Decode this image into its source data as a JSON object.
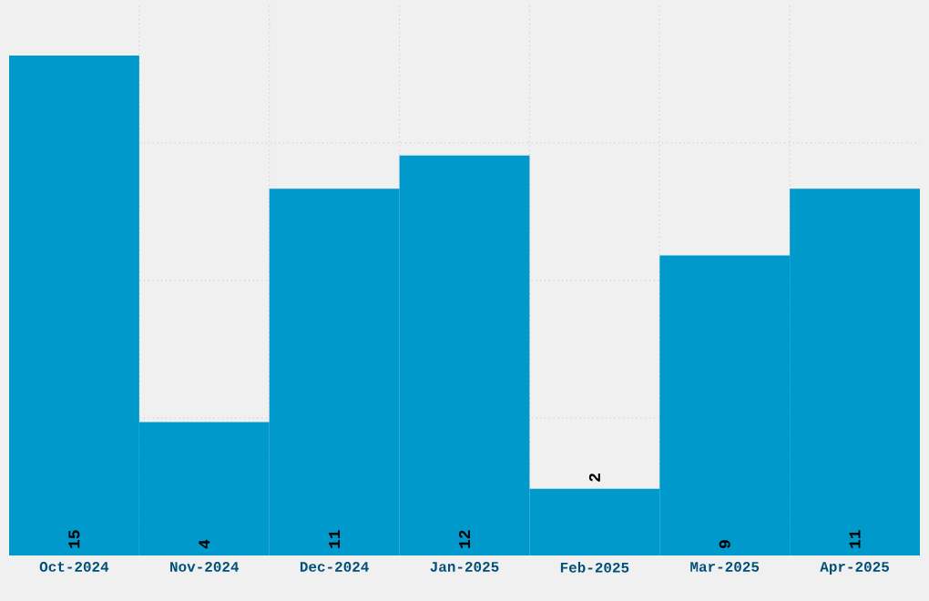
{
  "chart_data": {
    "type": "bar",
    "categories": [
      "Oct-2024",
      "Nov-2024",
      "Dec-2024",
      "Jan-2025",
      "Feb-2025",
      "Mar-2025",
      "Apr-2025"
    ],
    "values": [
      15,
      4,
      11,
      12,
      2,
      9,
      11
    ],
    "color": "#0099cc",
    "ylim": [
      0,
      16.5
    ],
    "yticks": [
      {
        "value": 4.125,
        "label": null
      },
      {
        "value": 8.25,
        "label": null
      },
      {
        "value": 12.375,
        "label": null
      }
    ],
    "grid": true,
    "data_labels": true
  }
}
